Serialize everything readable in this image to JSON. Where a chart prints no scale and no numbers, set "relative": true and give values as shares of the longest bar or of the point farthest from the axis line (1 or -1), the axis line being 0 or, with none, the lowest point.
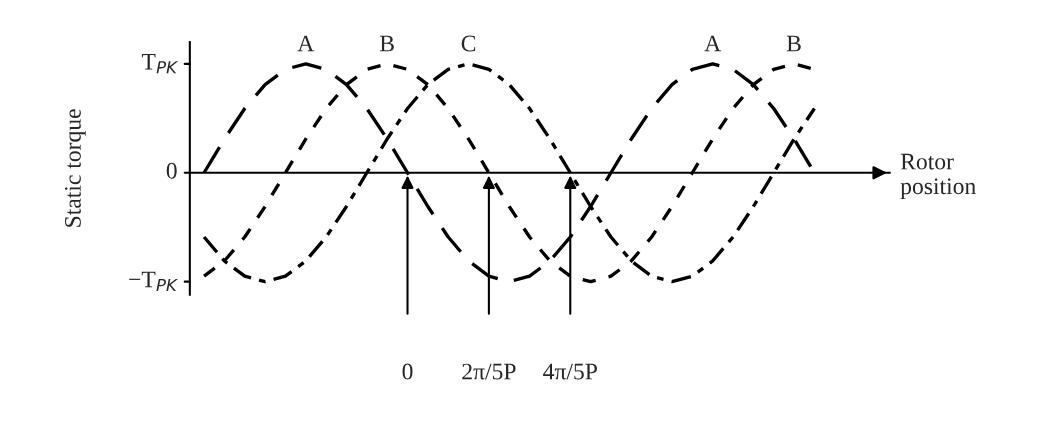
{
  "chart_data": {
    "type": "line",
    "xlabel": "Rotor position",
    "ylabel": "Static torque",
    "relative": true,
    "categories": [
      null,
      null,
      null,
      null,
      null,
      null,
      null,
      null,
      null,
      null,
      "0",
      null,
      null,
      null,
      "2π/5P",
      null,
      null,
      null,
      "4π/5P",
      null,
      null,
      null,
      null,
      null,
      null,
      null,
      null,
      null,
      null,
      null,
      null
    ],
    "series": [
      {
        "name": "A",
        "color": "#000000",
        "line_style": "dashed",
        "values": [
          0,
          0.31,
          0.59,
          0.81,
          0.95,
          1,
          0.95,
          0.81,
          0.59,
          0.31,
          0,
          -0.31,
          -0.59,
          -0.81,
          -0.95,
          -1,
          -0.95,
          -0.81,
          -0.59,
          -0.31,
          0,
          0.31,
          0.59,
          0.81,
          0.95,
          1,
          0.95,
          0.81,
          0.59,
          0.31,
          0
        ]
      },
      {
        "name": "B",
        "color": "#000000",
        "line_style": "dotted",
        "values": [
          -0.95,
          -0.81,
          -0.59,
          -0.31,
          0,
          0.31,
          0.59,
          0.81,
          0.95,
          1,
          0.95,
          0.81,
          0.59,
          0.31,
          0,
          -0.31,
          -0.59,
          -0.81,
          -0.95,
          -1,
          -0.95,
          -0.81,
          -0.59,
          -0.31,
          0,
          0.31,
          0.59,
          0.81,
          0.95,
          1,
          0.95
        ]
      },
      {
        "name": "C",
        "color": "#000000",
        "line_style": "dashdot",
        "values": [
          -0.59,
          -0.81,
          -0.95,
          -1,
          -0.95,
          -0.81,
          -0.59,
          -0.31,
          0,
          0.31,
          0.59,
          0.81,
          0.95,
          1,
          0.95,
          0.81,
          0.59,
          0.31,
          0,
          -0.31,
          -0.59,
          -0.81,
          -0.95,
          -1,
          -0.95,
          -0.81,
          -0.59,
          -0.31,
          0,
          0.31,
          0.59
        ]
      }
    ],
    "annotations": [
      "T$_{PK}$",
      "0",
      "−T$_{PK}$"
    ],
    "grid": false
  }
}
